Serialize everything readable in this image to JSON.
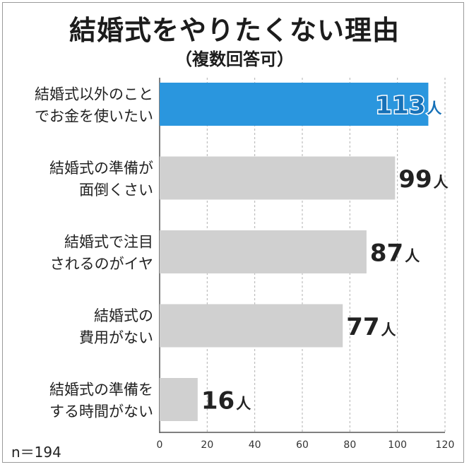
{
  "title": "結婚式をやりたくない理由",
  "subtitle": "（複数回答可）",
  "note": "n＝194",
  "colors": {
    "highlight_bar": "#2a96de",
    "highlight_text": "#1671b8",
    "bar": "#d0d0d0",
    "text": "#222222",
    "grid": "#b0b0b0"
  },
  "chart_data": {
    "type": "bar",
    "orientation": "horizontal",
    "categories": [
      [
        "結婚式以外のこと",
        "でお金を使いたい"
      ],
      [
        "結婚式の準備が",
        "面倒くさい"
      ],
      [
        "結婚式で注目",
        "されるのがイヤ"
      ],
      [
        "結婚式の",
        "費用がない"
      ],
      [
        "結婚式の準備を",
        "する時間がない"
      ]
    ],
    "values": [
      113,
      99,
      87,
      77,
      16
    ],
    "unit": "人",
    "highlight_index": 0,
    "xlim": [
      0,
      120
    ],
    "xticks": [
      "0",
      "20",
      "40",
      "60",
      "80",
      "100",
      "120"
    ],
    "grid": true
  }
}
